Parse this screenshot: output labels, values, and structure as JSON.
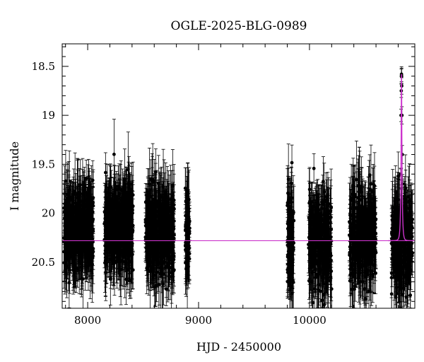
{
  "chart_data": {
    "type": "scatter",
    "title": "OGLE-2025-BLG-0989",
    "xlabel": "HJD - 2450000",
    "ylabel": "I magnitude",
    "xlim": [
      7770,
      10950
    ],
    "ylim": [
      20.97,
      18.27
    ],
    "y_inverted": true,
    "x_ticks": [
      8000,
      9000,
      10000
    ],
    "y_ticks": [
      18.5,
      19,
      19.5,
      20,
      20.5
    ],
    "baseline_magnitude": 20.28,
    "grid": false,
    "legend": "none",
    "colors": {
      "points": "#000000",
      "model": "#cc33cc"
    },
    "seasons": [
      {
        "x_start": 7785,
        "x_end": 8050,
        "mag_mean": 20.15,
        "mag_sigma": 0.25,
        "n_points": 420
      },
      {
        "x_start": 8150,
        "x_end": 8410,
        "mag_mean": 20.15,
        "mag_sigma": 0.25,
        "n_points": 420
      },
      {
        "x_start": 8520,
        "x_end": 8780,
        "mag_mean": 20.18,
        "mag_sigma": 0.25,
        "n_points": 420
      },
      {
        "x_start": 8880,
        "x_end": 8920,
        "mag_mean": 20.2,
        "mag_sigma": 0.22,
        "n_points": 80
      },
      {
        "x_start": 9800,
        "x_end": 9860,
        "mag_mean": 20.28,
        "mag_sigma": 0.3,
        "n_points": 120
      },
      {
        "x_start": 9990,
        "x_end": 10200,
        "mag_mean": 20.3,
        "mag_sigma": 0.28,
        "n_points": 300
      },
      {
        "x_start": 10360,
        "x_end": 10600,
        "mag_mean": 20.2,
        "mag_sigma": 0.3,
        "n_points": 320
      },
      {
        "x_start": 10740,
        "x_end": 10930,
        "mag_mean": 20.28,
        "mag_sigma": 0.28,
        "n_points": 300
      }
    ],
    "model": {
      "t0": 10830,
      "u0": 0.2,
      "tE": 10,
      "peak_magnitude": 18.58
    },
    "peak_points": [
      {
        "x": 10822,
        "y": 19.6
      },
      {
        "x": 10826,
        "y": 19.0
      },
      {
        "x": 10828,
        "y": 18.75
      },
      {
        "x": 10829,
        "y": 18.6
      },
      {
        "x": 10830,
        "y": 18.58
      },
      {
        "x": 10831,
        "y": 18.6
      },
      {
        "x": 10832,
        "y": 18.7
      },
      {
        "x": 10834,
        "y": 19.0
      },
      {
        "x": 10837,
        "y": 19.4
      },
      {
        "x": 10840,
        "y": 19.7
      }
    ]
  }
}
